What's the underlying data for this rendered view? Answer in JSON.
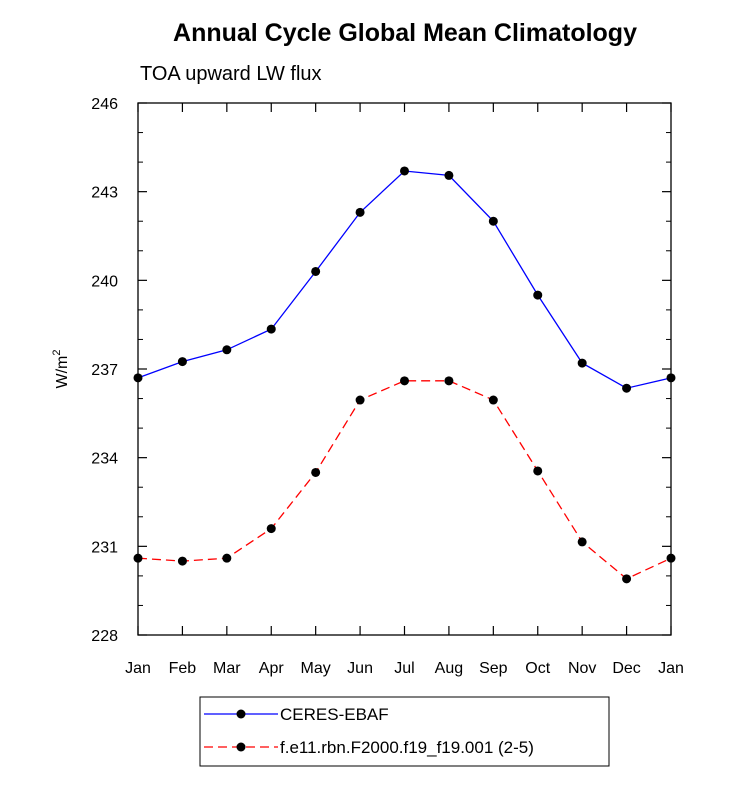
{
  "chart_data": {
    "type": "line",
    "title": "Annual Cycle Global Mean Climatology",
    "subtitle": "TOA upward LW flux",
    "xlabel": "",
    "ylabel": "W/m",
    "ylabel_superscript": "2",
    "categories": [
      "Jan",
      "Feb",
      "Mar",
      "Apr",
      "May",
      "Jun",
      "Jul",
      "Aug",
      "Sep",
      "Oct",
      "Nov",
      "Dec",
      "Jan"
    ],
    "ylim": [
      228,
      246
    ],
    "yticks": [
      228,
      231,
      234,
      237,
      240,
      243,
      246
    ],
    "ytick_labels": [
      "228",
      "231",
      "234",
      "237",
      "240",
      "243",
      "246"
    ],
    "y_minor_step": 1,
    "series": [
      {
        "name": "CERES-EBAF",
        "color": "#0000ff",
        "dash": "solid",
        "marker": "circle",
        "values": [
          236.7,
          237.25,
          237.65,
          238.35,
          240.3,
          242.3,
          243.7,
          243.55,
          242.0,
          239.5,
          237.2,
          236.35,
          236.7
        ]
      },
      {
        "name": "f.e11.rbn.F2000.f19_f19.001 (2-5)",
        "color": "#ff0000",
        "dash": "dashed",
        "marker": "circle",
        "values": [
          230.6,
          230.5,
          230.6,
          231.6,
          233.5,
          235.95,
          236.6,
          236.6,
          235.95,
          233.55,
          231.15,
          229.9,
          230.6
        ]
      }
    ],
    "grid": false,
    "legend_position": "bottom-center"
  }
}
